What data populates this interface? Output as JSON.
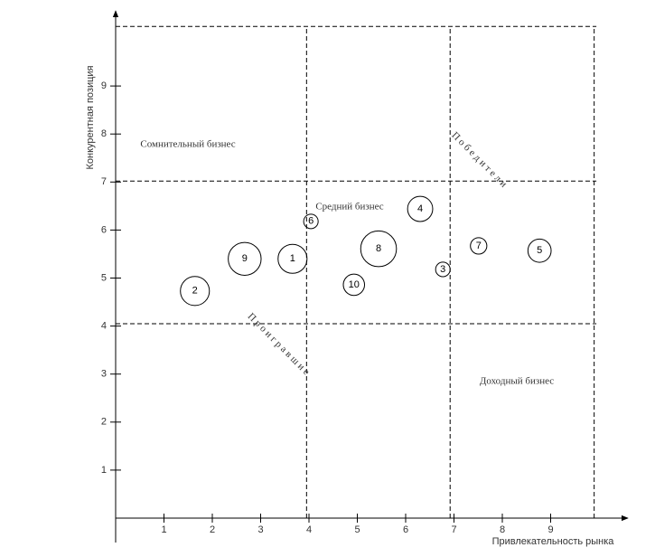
{
  "chart_data": {
    "type": "bubble",
    "x_label": "Привлекательность рынка",
    "y_label": "Конкурентная позиция",
    "labels": [
      "1",
      "2",
      "3",
      "4",
      "5",
      "6",
      "7",
      "8",
      "9",
      "10"
    ],
    "x": [
      3.66,
      1.64,
      6.77,
      6.3,
      8.77,
      4.04,
      7.51,
      5.44,
      2.67,
      4.93
    ],
    "y": [
      5.4,
      4.73,
      5.18,
      6.44,
      5.57,
      6.18,
      5.67,
      5.61,
      5.4,
      4.86
    ],
    "sizes": [
      0.3,
      0.3,
      0.15,
      0.26,
      0.24,
      0.15,
      0.17,
      0.37,
      0.34,
      0.22
    ],
    "xlim": [
      0,
      10.6
    ],
    "ylim": [
      0,
      10.5
    ],
    "xticks": [
      1,
      2,
      3,
      4,
      5,
      6,
      7,
      8,
      9
    ],
    "yticks": [
      1,
      2,
      3,
      4,
      5,
      6,
      7,
      8,
      9
    ],
    "vlines": [
      3.95,
      6.92,
      9.9
    ],
    "hlines": [
      4.05,
      7.02,
      10.24
    ],
    "annotations": [
      "Сомнительный бизнес",
      "Средний бизнес",
      "Доходный бизнес",
      "П о б е д и т е л и",
      "П р о и г р а в ш и е"
    ],
    "color": "#000000"
  }
}
